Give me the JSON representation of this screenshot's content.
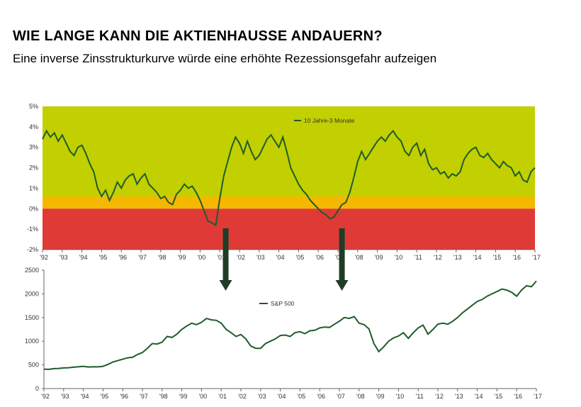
{
  "title": "WIE LANGE KANN DIE AKTIENHAUSSE ANDAUERN?",
  "subtitle": "Eine inverse Zinsstrukturkurve würde eine erhöhte Rezessionsgefahr aufzeigen",
  "colors": {
    "zone_green": "#c2cf00",
    "zone_orange": "#f5b800",
    "zone_red": "#e03a36",
    "line": "#1f5c2a",
    "arrow": "#1f3d26"
  },
  "chart_data": [
    {
      "type": "line",
      "legend": "10 Jahre-3 Monate",
      "legend_position": "top-center",
      "ylim": [
        -2,
        5
      ],
      "y_ticks": [
        "5%",
        "4%",
        "3%",
        "2%",
        "1%",
        "0%",
        "-1%",
        "-2%"
      ],
      "y_tick_values": [
        5,
        4,
        3,
        2,
        1,
        0,
        -1,
        -2
      ],
      "x_ticks": [
        "'92",
        "'93",
        "'94",
        "'95",
        "'96",
        "'97",
        "'98",
        "'99",
        "'00",
        "'01",
        "'02",
        "'03",
        "'04",
        "'05",
        "'06",
        "'07",
        "'08",
        "'09",
        "'10",
        "'11",
        "'12",
        "'13",
        "'14",
        "'15",
        "'16",
        "'17"
      ],
      "zones": [
        {
          "name": "green",
          "from": 0.6,
          "to": 5
        },
        {
          "name": "orange",
          "from": 0,
          "to": 0.6
        },
        {
          "name": "red",
          "from": -2,
          "to": 0
        }
      ],
      "series": [
        {
          "x": [
            1992.0,
            1992.2,
            1992.4,
            1992.6,
            1992.8,
            1993.0,
            1993.2,
            1993.4,
            1993.6,
            1993.8,
            1994.0,
            1994.2,
            1994.4,
            1994.6,
            1994.8,
            1995.0,
            1995.2,
            1995.4,
            1995.6,
            1995.8,
            1996.0,
            1996.2,
            1996.4,
            1996.6,
            1996.8,
            1997.0,
            1997.2,
            1997.4,
            1997.6,
            1997.8,
            1998.0,
            1998.2,
            1998.4,
            1998.6,
            1998.8,
            1999.0,
            1999.2,
            1999.4,
            1999.6,
            1999.8,
            2000.0,
            2000.2,
            2000.4,
            2000.6,
            2000.8,
            2001.0,
            2001.2,
            2001.4,
            2001.6,
            2001.8,
            2002.0,
            2002.2,
            2002.4,
            2002.6,
            2002.8,
            2003.0,
            2003.2,
            2003.4,
            2003.6,
            2003.8,
            2004.0,
            2004.2,
            2004.4,
            2004.6,
            2004.8,
            2005.0,
            2005.2,
            2005.4,
            2005.6,
            2005.8,
            2006.0,
            2006.2,
            2006.4,
            2006.6,
            2006.8,
            2007.0,
            2007.2,
            2007.4,
            2007.6,
            2007.8,
            2008.0,
            2008.2,
            2008.4,
            2008.6,
            2008.8,
            2009.0,
            2009.2,
            2009.4,
            2009.6,
            2009.8,
            2010.0,
            2010.2,
            2010.4,
            2010.6,
            2010.8,
            2011.0,
            2011.2,
            2011.4,
            2011.6,
            2011.8,
            2012.0,
            2012.2,
            2012.4,
            2012.6,
            2012.8,
            2013.0,
            2013.2,
            2013.4,
            2013.6,
            2013.8,
            2014.0,
            2014.2,
            2014.4,
            2014.6,
            2014.8,
            2015.0,
            2015.2,
            2015.4,
            2015.6,
            2015.8,
            2016.0,
            2016.2,
            2016.4,
            2016.6,
            2016.8,
            2017.0
          ],
          "y": [
            3.4,
            3.8,
            3.5,
            3.7,
            3.3,
            3.6,
            3.2,
            2.8,
            2.6,
            3.0,
            3.1,
            2.7,
            2.2,
            1.8,
            1.0,
            0.6,
            0.9,
            0.4,
            0.8,
            1.3,
            1.0,
            1.4,
            1.6,
            1.7,
            1.2,
            1.5,
            1.7,
            1.2,
            1.0,
            0.8,
            0.5,
            0.6,
            0.3,
            0.2,
            0.7,
            0.9,
            1.2,
            1.0,
            1.1,
            0.8,
            0.4,
            -0.1,
            -0.6,
            -0.7,
            -0.8,
            0.5,
            1.6,
            2.3,
            3.0,
            3.5,
            3.2,
            2.7,
            3.3,
            2.8,
            2.4,
            2.6,
            3.0,
            3.4,
            3.6,
            3.3,
            3.0,
            3.5,
            2.8,
            2.0,
            1.6,
            1.2,
            0.9,
            0.7,
            0.4,
            0.2,
            0.0,
            -0.2,
            -0.3,
            -0.5,
            -0.4,
            -0.1,
            0.2,
            0.3,
            0.8,
            1.5,
            2.3,
            2.8,
            2.4,
            2.7,
            3.0,
            3.3,
            3.5,
            3.3,
            3.6,
            3.8,
            3.5,
            3.3,
            2.8,
            2.6,
            3.0,
            3.2,
            2.6,
            2.9,
            2.2,
            1.9,
            2.0,
            1.7,
            1.8,
            1.5,
            1.7,
            1.6,
            1.8,
            2.4,
            2.7,
            2.9,
            3.0,
            2.6,
            2.5,
            2.7,
            2.4,
            2.2,
            2.0,
            2.3,
            2.1,
            2.0,
            1.6,
            1.8,
            1.4,
            1.3,
            1.8,
            2.0
          ]
        }
      ]
    },
    {
      "type": "line",
      "legend": "S&P 500",
      "legend_position": "top-center",
      "ylim": [
        0,
        2500
      ],
      "y_ticks": [
        "2500",
        "2000",
        "1500",
        "1000",
        "500",
        "0"
      ],
      "y_tick_values": [
        2500,
        2000,
        1500,
        1000,
        500,
        0
      ],
      "x_ticks": [
        "'92",
        "'93",
        "'94",
        "'95",
        "'96",
        "'97",
        "'98",
        "'99",
        "'00",
        "'01",
        "'02",
        "'03",
        "'04",
        "'05",
        "'06",
        "'07",
        "'08",
        "'09",
        "'10",
        "'11",
        "'12",
        "'13",
        "'14",
        "'15",
        "'16",
        "'17"
      ],
      "series": [
        {
          "x": [
            1992.0,
            1992.25,
            1992.5,
            1992.75,
            1993.0,
            1993.25,
            1993.5,
            1993.75,
            1994.0,
            1994.25,
            1994.5,
            1994.75,
            1995.0,
            1995.25,
            1995.5,
            1995.75,
            1996.0,
            1996.25,
            1996.5,
            1996.75,
            1997.0,
            1997.25,
            1997.5,
            1997.75,
            1998.0,
            1998.25,
            1998.5,
            1998.75,
            1999.0,
            1999.25,
            1999.5,
            1999.75,
            2000.0,
            2000.25,
            2000.5,
            2000.75,
            2001.0,
            2001.25,
            2001.5,
            2001.75,
            2002.0,
            2002.25,
            2002.5,
            2002.75,
            2003.0,
            2003.25,
            2003.5,
            2003.75,
            2004.0,
            2004.25,
            2004.5,
            2004.75,
            2005.0,
            2005.25,
            2005.5,
            2005.75,
            2006.0,
            2006.25,
            2006.5,
            2006.75,
            2007.0,
            2007.25,
            2007.5,
            2007.75,
            2008.0,
            2008.25,
            2008.5,
            2008.75,
            2009.0,
            2009.25,
            2009.5,
            2009.75,
            2010.0,
            2010.25,
            2010.5,
            2010.75,
            2011.0,
            2011.25,
            2011.5,
            2011.75,
            2012.0,
            2012.25,
            2012.5,
            2012.75,
            2013.0,
            2013.25,
            2013.5,
            2013.75,
            2014.0,
            2014.25,
            2014.5,
            2014.75,
            2015.0,
            2015.25,
            2015.5,
            2015.75,
            2016.0,
            2016.25,
            2016.5,
            2016.75,
            2017.0
          ],
          "y": [
            410,
            405,
            420,
            425,
            435,
            440,
            450,
            460,
            470,
            455,
            460,
            458,
            470,
            510,
            560,
            590,
            620,
            650,
            660,
            720,
            760,
            850,
            950,
            940,
            980,
            1100,
            1080,
            1150,
            1250,
            1320,
            1380,
            1350,
            1400,
            1480,
            1450,
            1440,
            1380,
            1250,
            1180,
            1100,
            1140,
            1050,
            900,
            850,
            850,
            950,
            1000,
            1050,
            1120,
            1130,
            1100,
            1180,
            1200,
            1160,
            1220,
            1230,
            1280,
            1300,
            1290,
            1360,
            1420,
            1500,
            1480,
            1520,
            1380,
            1350,
            1260,
            950,
            780,
            880,
            1000,
            1070,
            1110,
            1180,
            1060,
            1180,
            1280,
            1340,
            1150,
            1250,
            1360,
            1380,
            1360,
            1420,
            1500,
            1600,
            1680,
            1760,
            1840,
            1880,
            1950,
            2000,
            2050,
            2100,
            2080,
            2030,
            1950,
            2080,
            2170,
            2150,
            2270
          ]
        }
      ]
    }
  ]
}
